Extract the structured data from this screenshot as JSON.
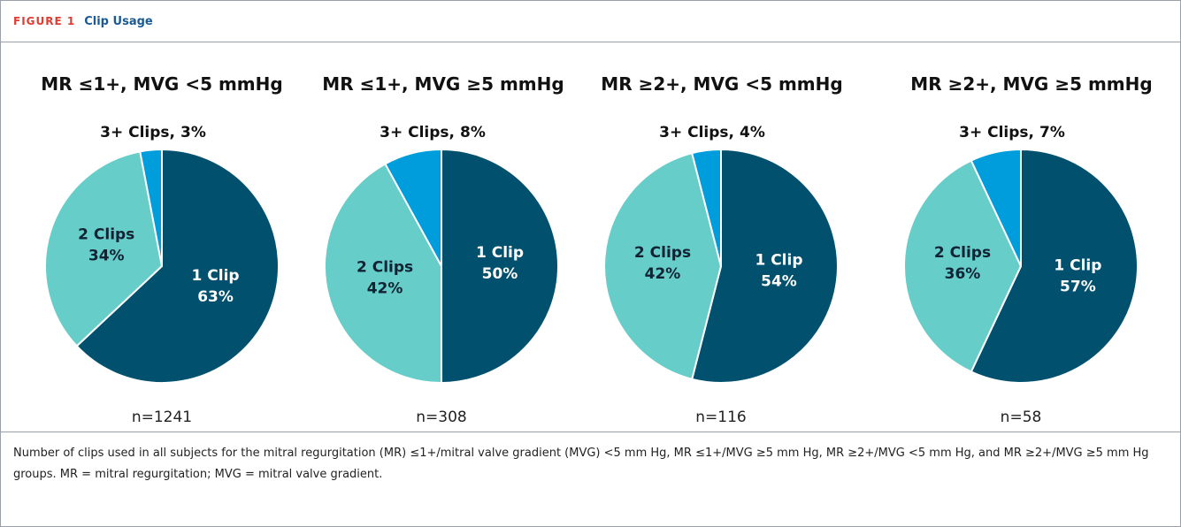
{
  "figure": {
    "label": "FIGURE 1",
    "title": "Clip Usage",
    "caption": "Number of clips used in all subjects for the mitral regurgitation (MR) ≤1+/mitral valve gradient (MVG) <5 mm Hg, MR ≤1+/MVG ≥5 mm Hg, MR ≥2+/MVG <5 mm Hg, and MR ≥2+/MVG ≥5 mm Hg groups. MR = mitral regurgitation; MVG = mitral valve gradient."
  },
  "chart_data": [
    {
      "type": "pie",
      "title": "MR ≤1+, MVG <5 mm​Hg",
      "note": "n=1241",
      "categories": [
        "1 Clip",
        "2 Clips",
        "3+ Clips,"
      ],
      "values": [
        63,
        34,
        3
      ],
      "value_labels": [
        "63%",
        "34%",
        "3%"
      ],
      "colors": [
        "#00506e",
        "#66cdc9",
        "#009ddc"
      ]
    },
    {
      "type": "pie",
      "title": "MR ≤1+, MVG ≥5 mmHg",
      "note": "n=308",
      "categories": [
        "1 Clip",
        "2 Clips",
        "3+ Clips,"
      ],
      "values": [
        50,
        42,
        8
      ],
      "value_labels": [
        "50%",
        "42%",
        "8%"
      ],
      "colors": [
        "#00506e",
        "#66cdc9",
        "#009ddc"
      ]
    },
    {
      "type": "pie",
      "title": "MR ≥2+, MVG <5 mmHg",
      "note": "n=116",
      "categories": [
        "1 Clip",
        "2 Clips",
        "3+ Clips,"
      ],
      "values": [
        54,
        42,
        4
      ],
      "value_labels": [
        "54%",
        "42%",
        "4%"
      ],
      "colors": [
        "#00506e",
        "#66cdc9",
        "#009ddc"
      ]
    },
    {
      "type": "pie",
      "title": "MR ≥2+, MVG ≥5 mmHg",
      "note": "n=58",
      "categories": [
        "1 Clip",
        "2 Clips",
        "3+ Clips,"
      ],
      "values": [
        57,
        36,
        7
      ],
      "value_labels": [
        "57%",
        "36%",
        "7%"
      ],
      "colors": [
        "#00506e",
        "#66cdc9",
        "#009ddc"
      ]
    }
  ]
}
